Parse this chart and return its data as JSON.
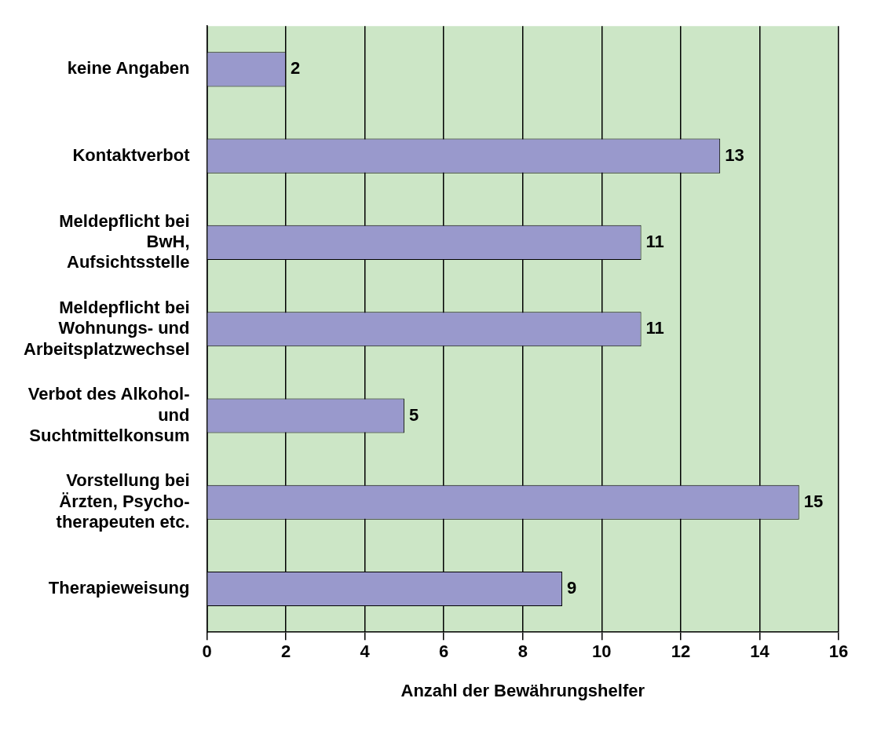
{
  "chart_data": {
    "type": "bar",
    "orientation": "horizontal",
    "xlabel": "Anzahl der Bewährungshelfer",
    "categories": [
      "keine Angaben",
      "Kontaktverbot",
      "Meldepflicht bei BwH, Aufsichtsstelle",
      "Meldepflicht bei Wohnungs- und Arbeitsplatzwechsel",
      "Verbot des Alkohol- und Suchtmittelkonsum",
      "Vorstellung bei Ärzten, Psycho-therapeuten etc.",
      "Therapieweisung"
    ],
    "values": [
      2,
      13,
      11,
      11,
      5,
      15,
      9
    ],
    "color": "#9999cc",
    "xlim": [
      0,
      16
    ],
    "xticks": [
      0,
      2,
      4,
      6,
      8,
      10,
      12,
      14,
      16
    ],
    "grid": "x",
    "data_labels": true,
    "legend": false
  }
}
